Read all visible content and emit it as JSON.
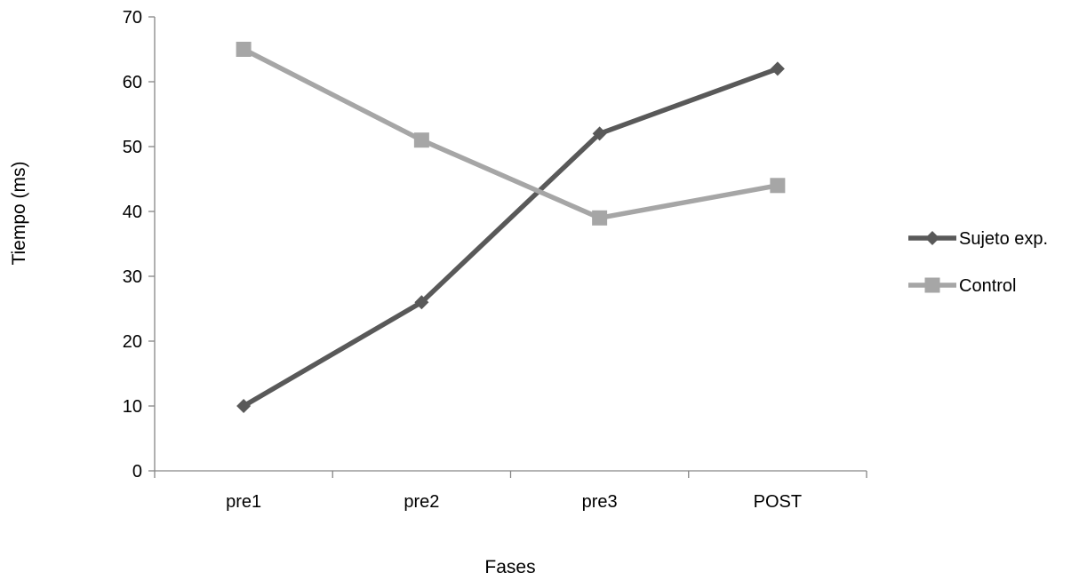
{
  "chart_data": {
    "type": "line",
    "categories": [
      "pre1",
      "pre2",
      "pre3",
      "POST"
    ],
    "series": [
      {
        "name": "Sujeto exp.",
        "values": [
          10,
          26,
          52,
          62
        ],
        "color": "#595959",
        "marker": "diamond"
      },
      {
        "name": "Control",
        "values": [
          65,
          51,
          39,
          44
        ],
        "color": "#a6a6a6",
        "marker": "square"
      }
    ],
    "xlabel": "Fases",
    "ylabel": "Tiempo (ms)",
    "ylim": [
      0,
      70
    ],
    "yticks": [
      0,
      10,
      20,
      30,
      40,
      50,
      60,
      70
    ],
    "grid": false,
    "legend": "right"
  }
}
